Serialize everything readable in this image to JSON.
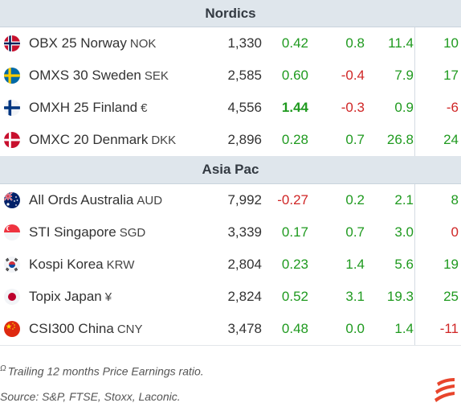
{
  "sections": [
    {
      "title": "Nordics",
      "rows": [
        {
          "flag": "norway-flag-icon",
          "name": "OBX 25 Norway",
          "ccy": "NOK",
          "level": "1,330",
          "c1": "0.42",
          "c2": "0.8",
          "c3": "11.4",
          "c4": "10"
        },
        {
          "flag": "sweden-flag-icon",
          "name": "OMXS 30 Sweden",
          "ccy": "SEK",
          "level": "2,585",
          "c1": "0.60",
          "c2": "-0.4",
          "c3": "7.9",
          "c4": "17"
        },
        {
          "flag": "finland-flag-icon",
          "name": "OMXH 25 Finland",
          "ccy": "€",
          "level": "4,556",
          "c1": "1.44",
          "c2": "-0.3",
          "c3": "0.9",
          "c4": "-6"
        },
        {
          "flag": "denmark-flag-icon",
          "name": "OMXC 20 Denmark",
          "ccy": "DKK",
          "level": "2,896",
          "c1": "0.28",
          "c2": "0.7",
          "c3": "26.8",
          "c4": "24"
        }
      ]
    },
    {
      "title": "Asia Pac",
      "rows": [
        {
          "flag": "australia-flag-icon",
          "name": "All Ords Australia",
          "ccy": "AUD",
          "level": "7,992",
          "c1": "-0.27",
          "c2": "0.2",
          "c3": "2.1",
          "c4": "8"
        },
        {
          "flag": "singapore-flag-icon",
          "name": "STI Singapore",
          "ccy": "SGD",
          "level": "3,339",
          "c1": "0.17",
          "c2": "0.7",
          "c3": "3.0",
          "c4": "0"
        },
        {
          "flag": "korea-flag-icon",
          "name": "Kospi Korea",
          "ccy": "KRW",
          "level": "2,804",
          "c1": "0.23",
          "c2": "1.4",
          "c3": "5.6",
          "c4": "19"
        },
        {
          "flag": "japan-flag-icon",
          "name": "Topix Japan",
          "ccy": "¥",
          "level": "2,824",
          "c1": "0.52",
          "c2": "3.1",
          "c3": "19.3",
          "c4": "25"
        },
        {
          "flag": "china-flag-icon",
          "name": "CSI300 China",
          "ccy": "CNY",
          "level": "3,478",
          "c1": "0.48",
          "c2": "0.0",
          "c3": "1.4",
          "c4": "-11"
        }
      ]
    }
  ],
  "footnote": {
    "marker": "Ω",
    "text": "Trailing 12 months Price Earnings ratio."
  },
  "source": "Source: S&P, FTSE, Stoxx, Laconic.",
  "colors": {
    "positive": "#1f9a1f",
    "negative": "#d02626",
    "header_bg": "#dfe6ec",
    "logo": "#e8452c"
  },
  "logo_icon": "laconic-logo-icon"
}
